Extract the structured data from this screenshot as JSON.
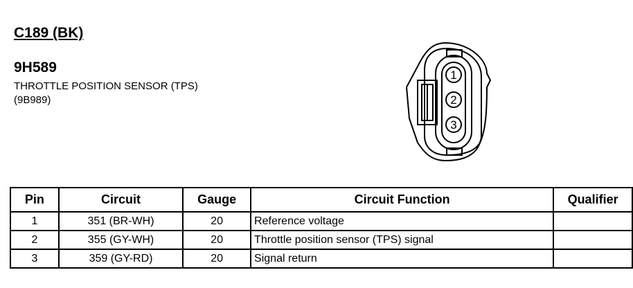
{
  "connector": "C189 (BK)",
  "part_number": "9H589",
  "description": "THROTTLE POSITION SENSOR (TPS)",
  "component_number": "(9B989)",
  "diagram": {
    "pins": [
      "1",
      "2",
      "3"
    ]
  },
  "table": {
    "headers": [
      "Pin",
      "Circuit",
      "Gauge",
      "Circuit Function",
      "Qualifier"
    ],
    "rows": [
      {
        "pin": "1",
        "circuit": "351 (BR-WH)",
        "gauge": "20",
        "function": "Reference voltage",
        "qualifier": ""
      },
      {
        "pin": "2",
        "circuit": "355 (GY-WH)",
        "gauge": "20",
        "function": "Throttle position sensor (TPS) signal",
        "qualifier": ""
      },
      {
        "pin": "3",
        "circuit": "359 (GY-RD)",
        "gauge": "20",
        "function": "Signal return",
        "qualifier": ""
      }
    ]
  }
}
